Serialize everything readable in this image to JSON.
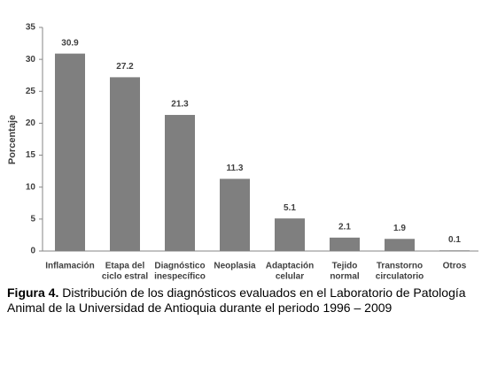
{
  "chart_data": {
    "type": "bar",
    "y_label": "Porcentaje",
    "categories": [
      [
        "Inflamación"
      ],
      [
        "Etapa del",
        "ciclo estral"
      ],
      [
        "Diagnóstico",
        "inespecífico"
      ],
      [
        "Neoplasia"
      ],
      [
        "Adaptación",
        "celular"
      ],
      [
        "Tejido",
        "normal"
      ],
      [
        "Transtorno",
        "circulatorio"
      ],
      [
        "Otros"
      ]
    ],
    "values": [
      30.9,
      27.2,
      21.3,
      11.3,
      5.1,
      2.1,
      1.9,
      0.1
    ],
    "color": "#7f7f7f",
    "ylim": [
      0,
      35
    ],
    "yticks": [
      0,
      5,
      10,
      15,
      20,
      25,
      30,
      35
    ],
    "grid": false
  },
  "caption": {
    "label": "Figura 4.",
    "text": "Distribución de los diagnósticos evaluados en el Laboratorio de Patología Animal de la Universidad de Antioquia durante el periodo 1996 – 2009"
  }
}
